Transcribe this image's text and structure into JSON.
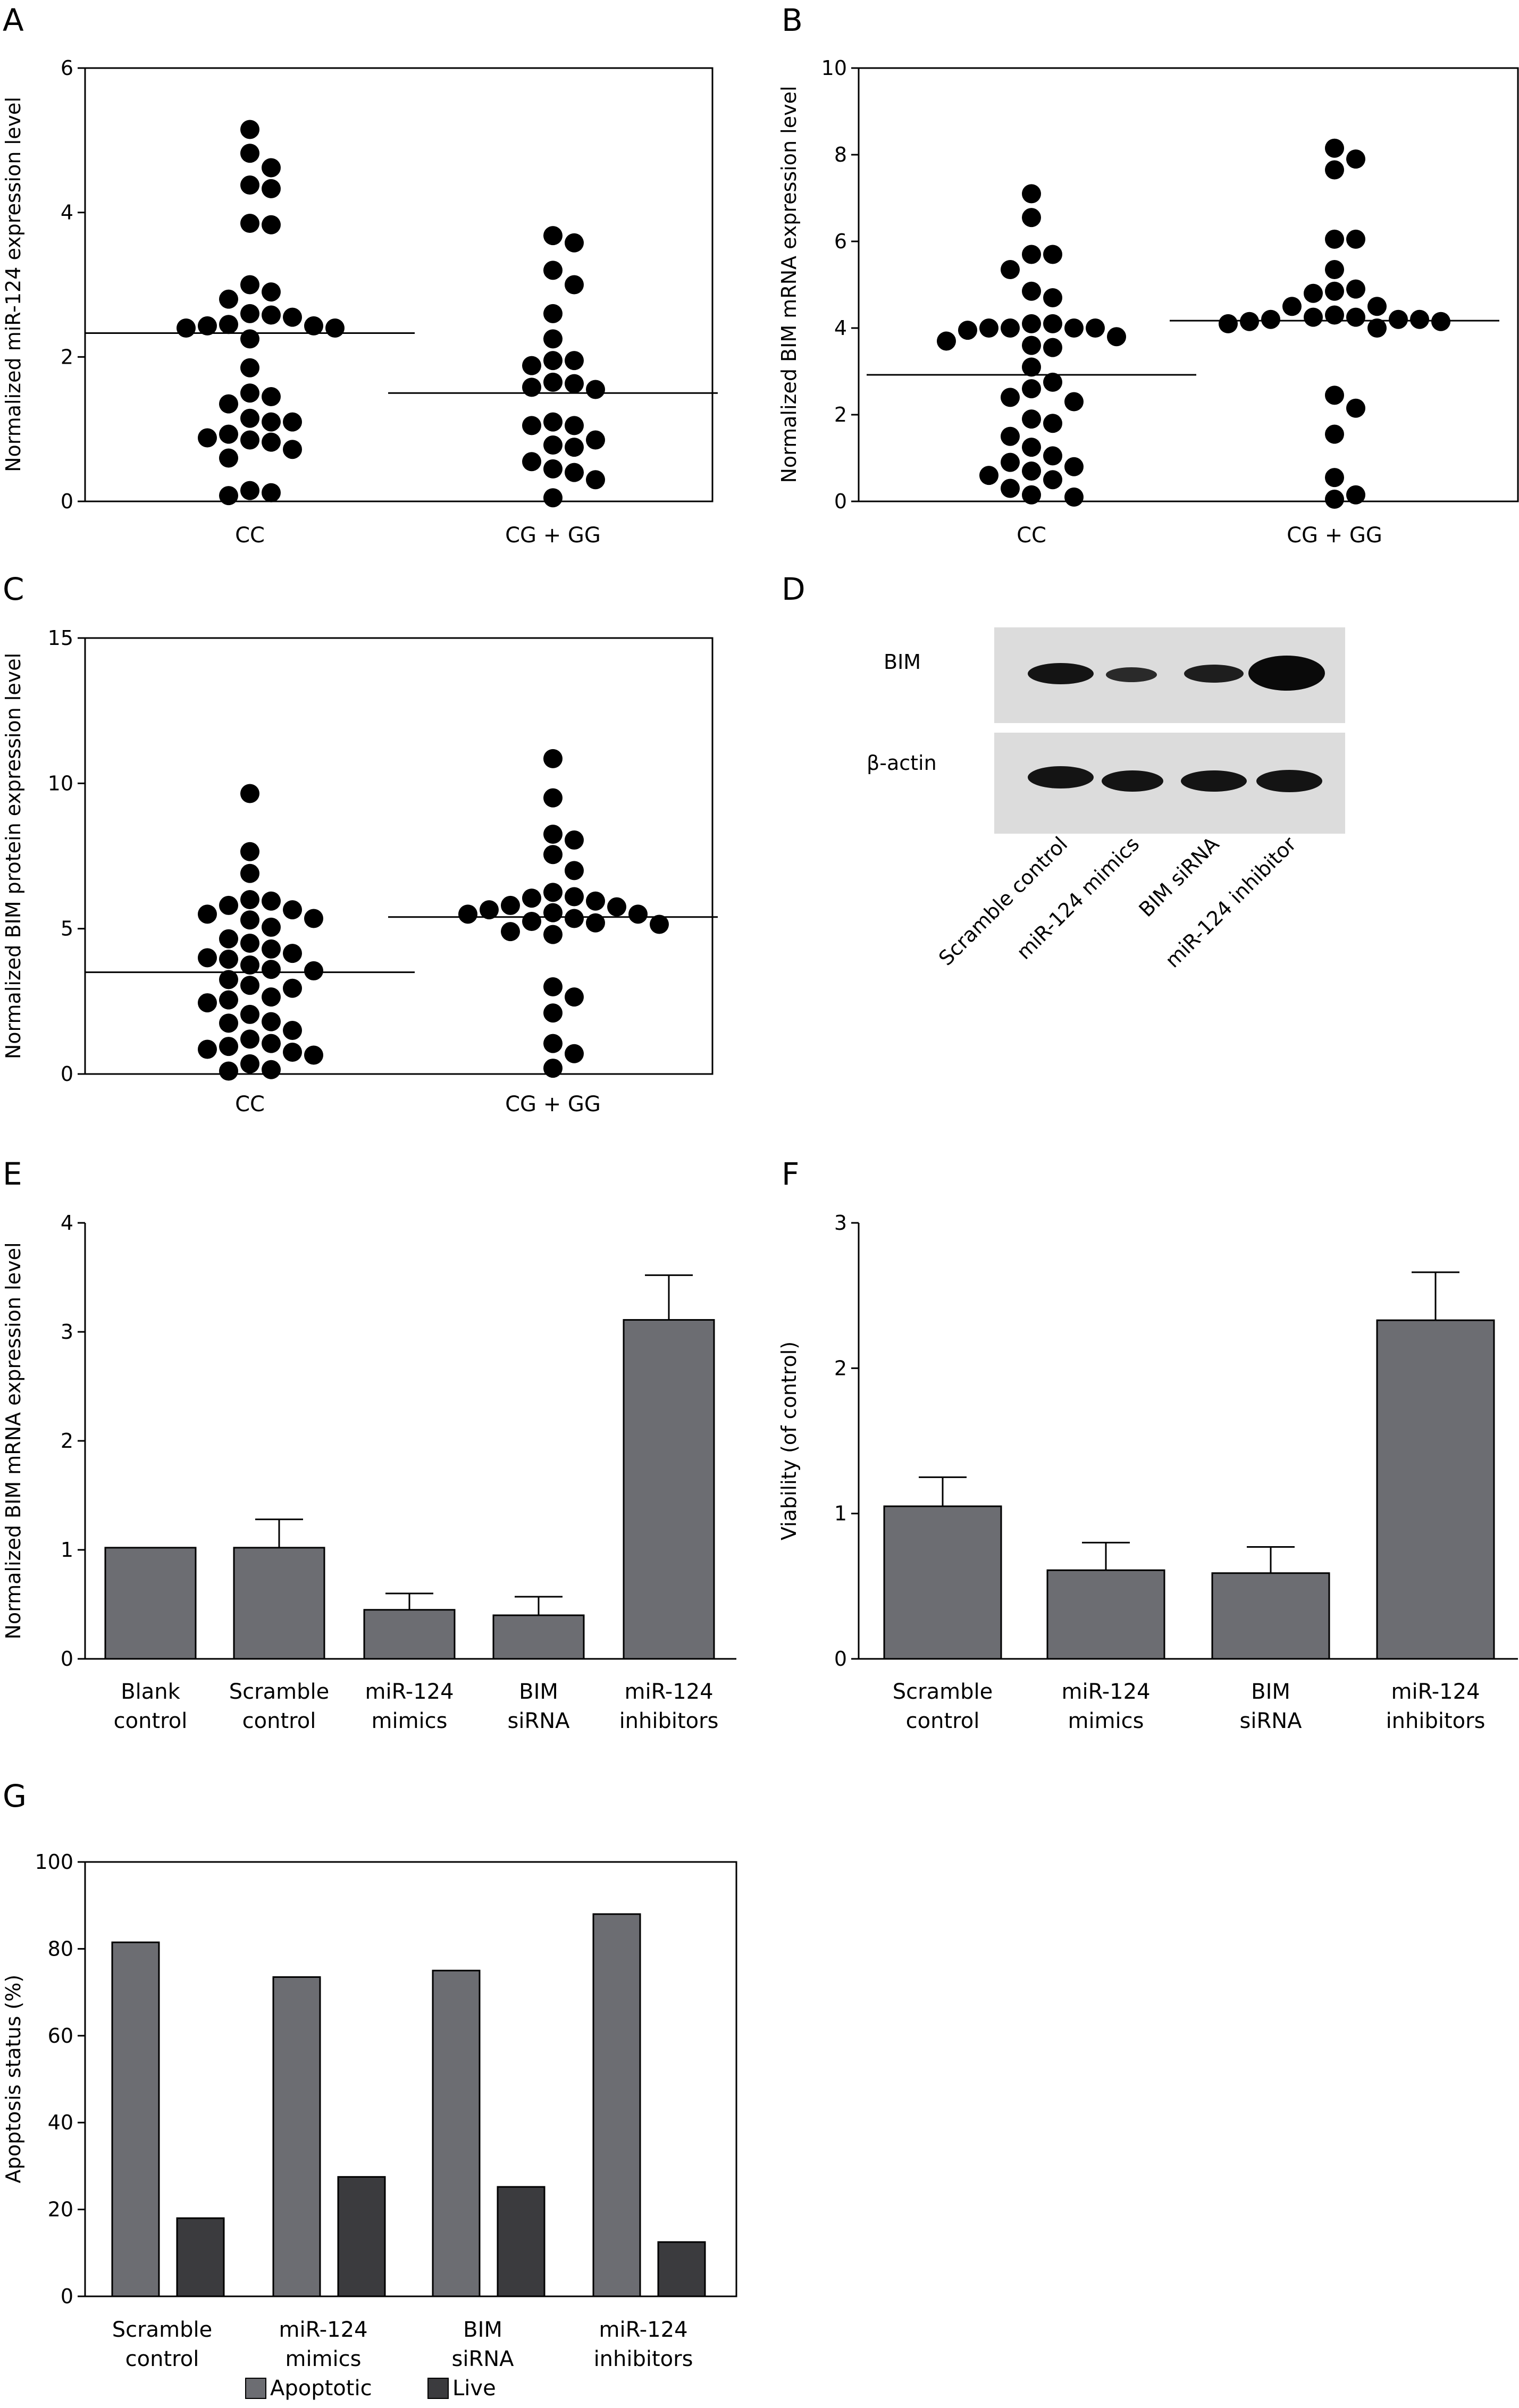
{
  "chart_data": [
    {
      "id": "A",
      "panel_label": "A",
      "type": "scatter",
      "ylabel": "Normalized miR-124 expression level",
      "ylim": [
        0,
        6
      ],
      "yticks": [
        "0",
        "2",
        "4",
        "6"
      ],
      "categories": [
        "CC",
        "CG + GG"
      ],
      "groups": [
        {
          "name": "CC",
          "mean": 2.33,
          "values": [
            5.15,
            4.82,
            4.62,
            4.38,
            4.33,
            3.85,
            3.83,
            3.0,
            2.9,
            2.8,
            2.6,
            2.58,
            2.55,
            2.45,
            2.43,
            2.43,
            2.4,
            2.4,
            2.25,
            1.85,
            1.5,
            1.45,
            1.35,
            1.15,
            1.1,
            1.1,
            0.93,
            0.88,
            0.85,
            0.82,
            0.72,
            0.6,
            0.15,
            0.12,
            0.08
          ]
        },
        {
          "name": "CG + GG",
          "mean": 1.5,
          "values": [
            3.68,
            3.58,
            3.2,
            3.0,
            2.6,
            2.25,
            1.95,
            1.95,
            1.88,
            1.65,
            1.63,
            1.58,
            1.55,
            1.1,
            1.05,
            1.05,
            0.85,
            0.78,
            0.75,
            0.55,
            0.45,
            0.4,
            0.3,
            0.05
          ]
        }
      ]
    },
    {
      "id": "B",
      "panel_label": "B",
      "type": "scatter",
      "ylabel": "Normalized BIM mRNA expression level",
      "ylim": [
        0,
        10
      ],
      "yticks": [
        "0",
        "2",
        "4",
        "6",
        "8",
        "10"
      ],
      "categories": [
        "CC",
        "CG + GG"
      ],
      "groups": [
        {
          "name": "CC",
          "mean": 2.92,
          "values": [
            7.1,
            6.55,
            5.7,
            5.7,
            5.35,
            4.85,
            4.7,
            4.1,
            4.1,
            4.0,
            4.0,
            4.0,
            4.0,
            3.95,
            3.8,
            3.7,
            3.6,
            3.55,
            3.1,
            2.75,
            2.6,
            2.4,
            2.3,
            1.9,
            1.8,
            1.5,
            1.25,
            1.05,
            0.9,
            0.8,
            0.7,
            0.6,
            0.5,
            0.3,
            0.15,
            0.1
          ]
        },
        {
          "name": "CG + GG",
          "mean": 4.17,
          "values": [
            8.15,
            7.9,
            7.65,
            6.05,
            6.05,
            5.35,
            4.9,
            4.85,
            4.8,
            4.5,
            4.5,
            4.3,
            4.25,
            4.25,
            4.2,
            4.2,
            4.2,
            4.15,
            4.15,
            4.1,
            4.0,
            2.45,
            2.15,
            1.55,
            0.55,
            0.15,
            0.05
          ]
        }
      ]
    },
    {
      "id": "C",
      "panel_label": "C",
      "type": "scatter",
      "ylabel": "Normalized BIM protein expression level",
      "ylim": [
        0,
        15
      ],
      "yticks": [
        "0",
        "5",
        "10",
        "15"
      ],
      "categories": [
        "CC",
        "CG + GG"
      ],
      "groups": [
        {
          "name": "CC",
          "mean": 3.5,
          "values": [
            9.65,
            7.65,
            6.9,
            6.0,
            5.95,
            5.8,
            5.65,
            5.5,
            5.35,
            5.3,
            5.05,
            4.65,
            4.5,
            4.3,
            4.15,
            4.0,
            3.95,
            3.75,
            3.6,
            3.55,
            3.25,
            3.05,
            2.95,
            2.65,
            2.55,
            2.45,
            2.05,
            1.8,
            1.75,
            1.5,
            1.2,
            1.05,
            0.95,
            0.85,
            0.75,
            0.65,
            0.35,
            0.15,
            0.1
          ]
        },
        {
          "name": "CG + GG",
          "mean": 5.4,
          "values": [
            10.85,
            9.5,
            8.25,
            8.05,
            7.55,
            7.0,
            6.25,
            6.1,
            6.05,
            5.95,
            5.8,
            5.75,
            5.65,
            5.55,
            5.5,
            5.5,
            5.35,
            5.25,
            5.2,
            5.15,
            4.9,
            4.8,
            3.0,
            2.65,
            2.1,
            1.05,
            0.7,
            0.2
          ]
        }
      ]
    },
    {
      "id": "E",
      "panel_label": "E",
      "type": "bar",
      "ylabel": "Normalized BIM mRNA expression level",
      "ylim": [
        0,
        4
      ],
      "yticks": [
        "0",
        "1",
        "2",
        "3",
        "4"
      ],
      "categories": [
        [
          "Blank",
          "control"
        ],
        [
          "Scramble",
          "control"
        ],
        [
          "miR-124",
          "mimics"
        ],
        [
          "BIM",
          "siRNA"
        ],
        [
          "miR-124",
          "inhibitors"
        ]
      ],
      "values": [
        1.02,
        1.02,
        0.45,
        0.4,
        3.11
      ],
      "errors": [
        0.0,
        0.26,
        0.15,
        0.17,
        0.41
      ]
    },
    {
      "id": "F",
      "panel_label": "F",
      "type": "bar",
      "ylabel": "Viability (of control)",
      "ylim": [
        0,
        3
      ],
      "yticks": [
        "0",
        "1",
        "2",
        "3"
      ],
      "categories": [
        [
          "Scramble",
          "control"
        ],
        [
          "miR-124",
          "mimics"
        ],
        [
          "BIM",
          "siRNA"
        ],
        [
          "miR-124",
          "inhibitors"
        ]
      ],
      "values": [
        1.05,
        0.61,
        0.59,
        2.33
      ],
      "errors": [
        0.2,
        0.19,
        0.18,
        0.33
      ]
    },
    {
      "id": "G",
      "panel_label": "G",
      "type": "bar",
      "ylabel": "Apoptosis status (%)",
      "ylim": [
        0,
        100
      ],
      "yticks": [
        "0",
        "20",
        "40",
        "60",
        "80",
        "100"
      ],
      "categories": [
        [
          "Scramble",
          "control"
        ],
        [
          "miR-124",
          "mimics"
        ],
        [
          "BIM",
          "siRNA"
        ],
        [
          "miR-124",
          "inhibitors"
        ]
      ],
      "series": [
        {
          "name": "Apoptotic",
          "values": [
            81.5,
            73.5,
            75.0,
            88.0
          ],
          "color": "#6c6d72"
        },
        {
          "name": "Live",
          "values": [
            18.0,
            27.5,
            25.2,
            12.5
          ],
          "color": "#3b3b3e"
        }
      ],
      "legend_position": "bottom"
    }
  ],
  "western_blot": {
    "panel_label": "D",
    "row_labels": [
      "BIM",
      "β-actin"
    ],
    "lanes": [
      "Scramble control",
      "miR-124 mimics",
      "BIM siRNA",
      "miR-124 inhibitor"
    ]
  },
  "colors": {
    "bar": "#6c6d72",
    "bar_dark": "#3b3b3e",
    "dot": "#000000",
    "blot_bg": "#dcdcdc"
  }
}
